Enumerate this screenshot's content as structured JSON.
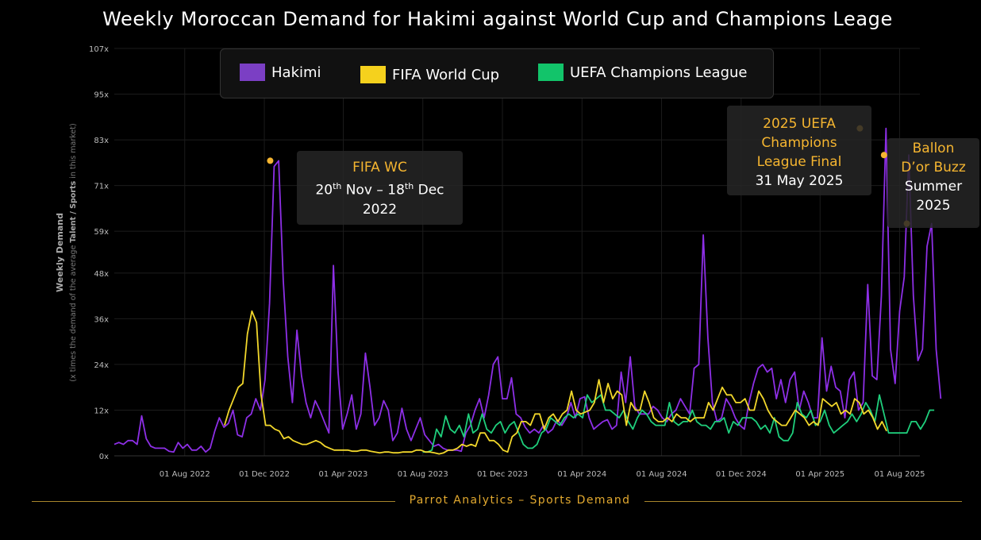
{
  "chart_data": {
    "type": "line",
    "title": "Weekly Moroccan Demand for Hakimi against World Cup and Champions Leage",
    "ylabel_main": "Weekly Demand",
    "ylabel_sub_pre": "(x times the demand of the average ",
    "ylabel_sub_bold": "Talent / Sports",
    "ylabel_sub_post": " in this market)",
    "ylim": [
      0,
      107
    ],
    "y_ticks": [
      0,
      12,
      24,
      36,
      48,
      59,
      71,
      83,
      95,
      107
    ],
    "y_tick_labels": [
      "0x",
      "12x",
      "24x",
      "36x",
      "48x",
      "59x",
      "71x",
      "83x",
      "95x",
      "107x"
    ],
    "x_start": "2022-04-15",
    "x_end": "2025-09-01",
    "x_ticks": [
      "2022-08-01",
      "2022-12-01",
      "2023-04-01",
      "2023-08-01",
      "2023-12-01",
      "2024-04-01",
      "2024-08-01",
      "2024-12-01",
      "2025-04-01",
      "2025-08-01"
    ],
    "x_tick_labels": [
      "01 Aug 2022",
      "01 Dec 2022",
      "01 Apr 2023",
      "01 Aug 2023",
      "01 Dec 2023",
      "01 Apr 2024",
      "01 Aug 2024",
      "01 Dec 2024",
      "01 Apr 2025",
      "01 Aug 2025"
    ],
    "grid": true,
    "series": [
      {
        "name": "Hakimi",
        "color": "#8d2fe6",
        "start": "2022-04-15",
        "step_days": 7,
        "values": [
          3,
          3.5,
          3,
          4,
          4,
          3,
          10.5,
          4.5,
          2.5,
          2,
          2,
          2,
          1.2,
          1,
          3.5,
          2,
          3,
          1.5,
          1.5,
          2.5,
          1,
          2,
          6.5,
          10,
          7.5,
          8.5,
          12,
          5.5,
          5,
          10,
          11,
          15,
          12,
          20,
          40,
          76,
          77.5,
          46,
          26,
          14,
          33,
          21,
          14,
          10,
          14.5,
          12,
          9,
          6,
          50,
          22,
          7,
          11,
          16,
          7,
          11,
          27,
          18,
          8,
          10,
          14.5,
          12,
          4,
          6,
          12.5,
          7,
          4,
          7,
          10,
          5.5,
          4,
          2.5,
          3,
          2,
          1.5,
          1.5,
          1.5,
          1.2,
          6,
          8,
          12,
          15,
          10,
          16,
          24,
          26,
          15,
          15,
          20.5,
          11,
          10,
          7.5,
          6,
          7,
          6,
          8,
          6,
          7,
          9.5,
          8,
          10,
          14,
          10,
          15,
          15.5,
          10,
          7,
          8,
          9,
          9.5,
          7,
          8,
          22,
          14,
          26,
          13,
          11,
          11,
          11,
          13,
          12,
          10,
          9,
          11,
          12,
          15,
          13,
          11,
          23,
          24,
          58,
          31,
          14,
          9,
          10,
          15,
          13,
          10,
          8,
          7,
          14,
          19,
          23,
          24,
          22,
          23,
          15,
          20,
          14,
          20,
          22,
          12,
          17,
          14,
          10,
          10,
          31,
          17,
          23.5,
          18,
          17,
          10,
          20,
          22,
          12,
          14,
          45,
          21,
          20,
          42,
          86,
          28,
          19,
          38,
          47,
          79,
          42,
          25,
          28,
          55,
          61,
          28,
          15
        ]
      },
      {
        "name": "FIFA World Cup",
        "color": "#f2d72b",
        "start": "2022-10-01",
        "step_days": 7,
        "values": [
          8,
          12,
          15,
          18,
          19,
          32,
          38,
          35,
          16,
          8,
          8,
          7,
          6.5,
          4.5,
          5,
          4,
          3.5,
          3,
          3,
          3.5,
          4,
          3.5,
          2.5,
          2,
          1.5,
          1.5,
          1.5,
          1.5,
          1.2,
          1.2,
          1.5,
          1.5,
          1.2,
          1,
          0.8,
          1,
          1,
          0.8,
          0.8,
          1,
          1,
          1,
          1.5,
          1.5,
          1,
          1,
          0.8,
          0.5,
          0.8,
          1.5,
          1.5,
          2,
          3,
          2.5,
          3,
          2.5,
          6,
          6,
          4,
          4,
          3,
          1.5,
          1,
          5,
          6,
          9,
          9,
          8,
          11,
          11,
          7,
          10,
          11,
          9,
          11,
          12,
          17,
          12,
          11,
          11.5,
          12,
          14,
          20,
          14,
          19,
          15,
          17,
          16,
          8,
          14,
          12,
          12,
          17,
          14,
          10,
          9,
          9,
          10,
          9,
          11,
          10,
          10,
          9,
          10,
          10,
          10,
          14,
          12,
          15,
          18,
          16,
          16,
          14,
          14,
          15,
          12,
          12,
          17,
          15,
          12,
          10,
          9,
          8,
          8,
          10,
          12,
          11,
          10,
          8,
          9,
          8,
          15,
          14,
          13,
          14,
          11,
          12,
          11,
          15,
          14,
          11,
          12,
          10,
          7,
          9,
          6.5
        ]
      },
      {
        "name": "UEFA Champions League",
        "color": "#1fcf7c",
        "start": "2023-08-01",
        "step_days": 7,
        "values": [
          1,
          1,
          1.5,
          7,
          5,
          10.5,
          7,
          6,
          8,
          5,
          11,
          6,
          7,
          11,
          7,
          6,
          8,
          9,
          6,
          8,
          9,
          6,
          3,
          2,
          2,
          3,
          6,
          7,
          10,
          9,
          8,
          10,
          11,
          10,
          11,
          10,
          16,
          14,
          15,
          16,
          12,
          12,
          11,
          10,
          12,
          9,
          7,
          10,
          12,
          11,
          9,
          8,
          8,
          8,
          14,
          9,
          8,
          9,
          9,
          12,
          9,
          8,
          8,
          7,
          9,
          9,
          10,
          6,
          9,
          8,
          10,
          10,
          10,
          9,
          7,
          8,
          6,
          10,
          5,
          4,
          4,
          6,
          14,
          11,
          10,
          12,
          8,
          9,
          12,
          8,
          6,
          7,
          8,
          9,
          11,
          9,
          11,
          14,
          12,
          9,
          16,
          11,
          6,
          6,
          6,
          6,
          6,
          9,
          9,
          7,
          9,
          12,
          12
        ]
      }
    ],
    "markers": [
      {
        "date": "2022-12-10",
        "value": 77.5
      },
      {
        "date": "2025-06-01",
        "value": 86
      },
      {
        "date": "2025-07-08",
        "value": 79
      },
      {
        "date": "2025-08-12",
        "value": 61
      }
    ]
  },
  "legend": {
    "hakimi": "Hakimi",
    "world_cup": "FIFA World Cup",
    "ucl": "UEFA Champions League",
    "colors": {
      "hakimi": "#7b3fc4",
      "world_cup": "#f5d11d",
      "ucl": "#12c46a"
    }
  },
  "annotations": {
    "wc": {
      "title": "FIFA WC",
      "d1": "20",
      "d1_sup": "th",
      "mid": " Nov – 18",
      "d2_sup": "th",
      "tail": " Dec",
      "line3": "2022"
    },
    "ucl_final": {
      "line1": "2025 UEFA",
      "line2": "Champions",
      "line3": "League Final",
      "line4": "31 May 2025"
    },
    "ballon": {
      "line1": "Ballon",
      "line2": "D’or Buzz",
      "line3": "Summer",
      "line4": "2025"
    }
  },
  "footer": "Parrot Analytics – Sports Demand"
}
